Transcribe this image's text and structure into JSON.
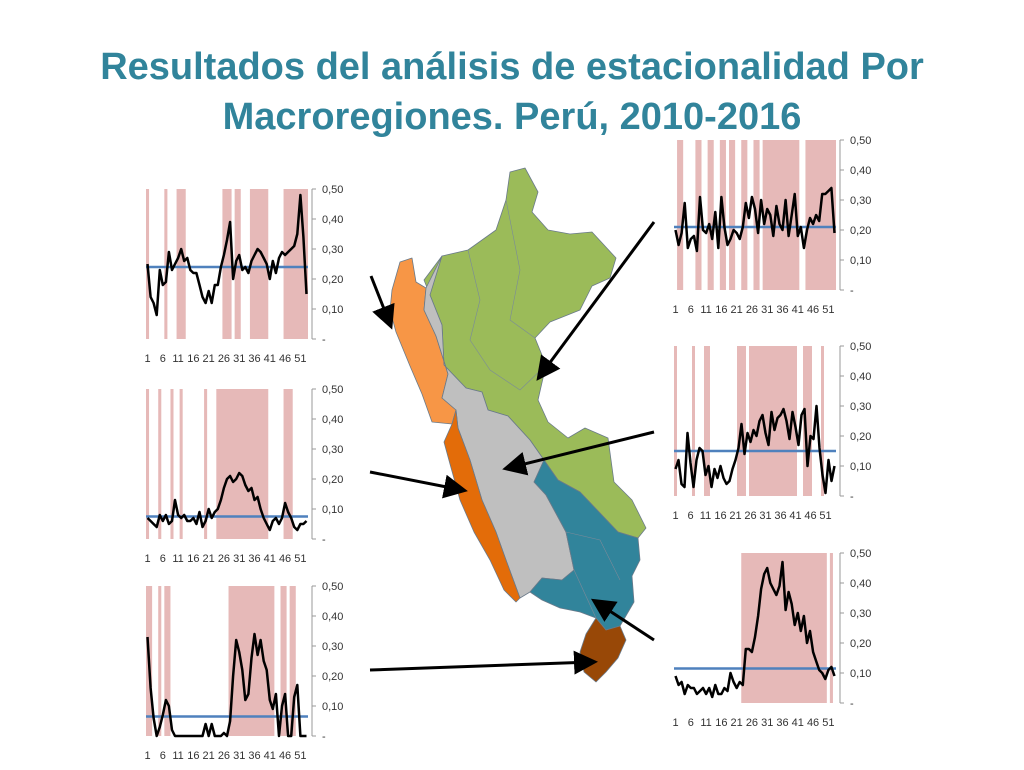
{
  "slide": {
    "title_line1": "Resultados del análisis de estacionalidad Por",
    "title_line2": "Macroregiones. Perú, 2010-2016"
  },
  "colors": {
    "title": "#31849B",
    "season_band": "#E6B9B8",
    "threshold_line": "#4F81BD",
    "series_line": "#000000",
    "map_green": "#9BBB59",
    "map_light_orange": "#F79646",
    "map_dark_orange": "#E36C09",
    "map_gray": "#BFBFBF",
    "map_teal": "#31849B",
    "map_brown": "#984807"
  },
  "chart_data": [
    {
      "id": "costa-norte",
      "type": "line",
      "ylim": [
        0,
        0.5
      ],
      "ytick_labels": [
        "-",
        "0,10",
        "0,20",
        "0,30",
        "0,40",
        "0,50"
      ],
      "xtick_labels": [
        "1",
        "6",
        "11",
        "16",
        "21",
        "26",
        "31",
        "36",
        "41",
        "46",
        "51"
      ],
      "threshold": 0.24,
      "bands": [
        [
          1,
          1
        ],
        [
          7,
          7
        ],
        [
          11,
          13
        ],
        [
          26,
          28
        ],
        [
          30,
          31
        ],
        [
          35,
          40
        ],
        [
          46,
          53
        ]
      ],
      "values": [
        0.25,
        0.14,
        0.12,
        0.08,
        0.23,
        0.18,
        0.19,
        0.29,
        0.23,
        0.25,
        0.27,
        0.3,
        0.26,
        0.27,
        0.23,
        0.22,
        0.22,
        0.18,
        0.14,
        0.12,
        0.16,
        0.12,
        0.18,
        0.18,
        0.24,
        0.28,
        0.33,
        0.39,
        0.2,
        0.26,
        0.28,
        0.23,
        0.24,
        0.22,
        0.26,
        0.28,
        0.3,
        0.29,
        0.27,
        0.25,
        0.2,
        0.26,
        0.22,
        0.27,
        0.29,
        0.28,
        0.29,
        0.3,
        0.31,
        0.35,
        0.48,
        0.34,
        0.15
      ]
    },
    {
      "id": "costa-centro",
      "type": "line",
      "ylim": [
        0,
        0.5
      ],
      "ytick_labels": [
        "-",
        "0,10",
        "0,20",
        "0,30",
        "0,40",
        "0,50"
      ],
      "xtick_labels": [
        "1",
        "6",
        "11",
        "16",
        "21",
        "26",
        "31",
        "36",
        "41",
        "46",
        "51"
      ],
      "threshold": 0.075,
      "bands": [
        [
          1,
          1
        ],
        [
          5,
          5
        ],
        [
          9,
          9
        ],
        [
          12,
          12
        ],
        [
          20,
          20
        ],
        [
          24,
          40
        ],
        [
          46,
          48
        ]
      ],
      "values": [
        0.07,
        0.06,
        0.05,
        0.04,
        0.08,
        0.06,
        0.08,
        0.05,
        0.06,
        0.13,
        0.08,
        0.07,
        0.08,
        0.06,
        0.06,
        0.07,
        0.05,
        0.09,
        0.04,
        0.06,
        0.1,
        0.07,
        0.09,
        0.1,
        0.13,
        0.17,
        0.2,
        0.21,
        0.19,
        0.2,
        0.22,
        0.21,
        0.18,
        0.16,
        0.17,
        0.13,
        0.14,
        0.1,
        0.07,
        0.05,
        0.03,
        0.06,
        0.07,
        0.05,
        0.07,
        0.12,
        0.09,
        0.07,
        0.04,
        0.03,
        0.05,
        0.05,
        0.06
      ]
    },
    {
      "id": "sur-costa",
      "type": "line",
      "ylim": [
        0,
        0.5
      ],
      "ytick_labels": [
        "-",
        "0,10",
        "0,20",
        "0,30",
        "0,40",
        "0,50"
      ],
      "xtick_labels": [
        "1",
        "6",
        "11",
        "16",
        "21",
        "26",
        "31",
        "36",
        "41",
        "46",
        "51"
      ],
      "threshold": 0.065,
      "bands": [
        [
          1,
          2
        ],
        [
          5,
          5
        ],
        [
          7,
          8
        ],
        [
          28,
          42
        ],
        [
          45,
          46
        ],
        [
          48,
          49
        ]
      ],
      "values": [
        0.33,
        0.16,
        0.06,
        0.0,
        0.03,
        0.07,
        0.12,
        0.1,
        0.02,
        0.0,
        0.0,
        0.0,
        0.0,
        0.0,
        0.0,
        0.0,
        0.0,
        0.0,
        0.0,
        0.04,
        0.0,
        0.04,
        0.0,
        0.0,
        0.0,
        0.01,
        0.0,
        0.05,
        0.2,
        0.32,
        0.28,
        0.22,
        0.12,
        0.14,
        0.26,
        0.34,
        0.27,
        0.32,
        0.25,
        0.22,
        0.12,
        0.09,
        0.14,
        0.0,
        0.1,
        0.14,
        0.0,
        0.0,
        0.13,
        0.17,
        0.0,
        0.0,
        0.0
      ]
    },
    {
      "id": "oriente",
      "type": "line",
      "ylim": [
        0,
        0.5
      ],
      "ytick_labels": [
        "-",
        "0,10",
        "0,20",
        "0,30",
        "0,40",
        "0,50"
      ],
      "xtick_labels": [
        "1",
        "6",
        "11",
        "16",
        "21",
        "26",
        "31",
        "36",
        "41",
        "46",
        "51"
      ],
      "threshold": 0.21,
      "bands": [
        [
          2,
          3
        ],
        [
          8,
          9
        ],
        [
          12,
          13
        ],
        [
          16,
          17
        ],
        [
          19,
          20
        ],
        [
          23,
          24
        ],
        [
          27,
          28
        ],
        [
          30,
          41
        ],
        [
          44,
          53
        ]
      ],
      "values": [
        0.2,
        0.15,
        0.19,
        0.29,
        0.14,
        0.17,
        0.18,
        0.13,
        0.31,
        0.2,
        0.19,
        0.22,
        0.17,
        0.26,
        0.14,
        0.31,
        0.21,
        0.15,
        0.17,
        0.2,
        0.19,
        0.17,
        0.21,
        0.29,
        0.24,
        0.31,
        0.27,
        0.19,
        0.3,
        0.22,
        0.27,
        0.25,
        0.18,
        0.28,
        0.22,
        0.2,
        0.3,
        0.18,
        0.25,
        0.32,
        0.18,
        0.21,
        0.14,
        0.2,
        0.24,
        0.22,
        0.25,
        0.23,
        0.32,
        0.32,
        0.33,
        0.34,
        0.19
      ]
    },
    {
      "id": "sierra-centro",
      "type": "line",
      "ylim": [
        0,
        0.5
      ],
      "ytick_labels": [
        "-",
        "0,10",
        "0,20",
        "0,30",
        "0,40",
        "0,50"
      ],
      "xtick_labels": [
        "1",
        "6",
        "11",
        "16",
        "21",
        "26",
        "31",
        "36",
        "41",
        "46",
        "51"
      ],
      "threshold": 0.15,
      "bands": [
        [
          1,
          1
        ],
        [
          7,
          7
        ],
        [
          11,
          12
        ],
        [
          22,
          24
        ],
        [
          26,
          41
        ],
        [
          44,
          46
        ],
        [
          50,
          50
        ]
      ],
      "values": [
        0.09,
        0.12,
        0.04,
        0.03,
        0.21,
        0.11,
        0.03,
        0.12,
        0.16,
        0.15,
        0.07,
        0.1,
        0.03,
        0.09,
        0.06,
        0.1,
        0.06,
        0.04,
        0.05,
        0.09,
        0.12,
        0.16,
        0.24,
        0.14,
        0.21,
        0.18,
        0.22,
        0.2,
        0.25,
        0.27,
        0.21,
        0.17,
        0.28,
        0.22,
        0.26,
        0.27,
        0.29,
        0.25,
        0.19,
        0.28,
        0.23,
        0.17,
        0.27,
        0.29,
        0.1,
        0.2,
        0.19,
        0.3,
        0.16,
        0.07,
        0.01,
        0.12,
        0.05,
        0.1
      ]
    },
    {
      "id": "sur-andino",
      "type": "line",
      "ylim": [
        0,
        0.5
      ],
      "ytick_labels": [
        "-",
        "0,10",
        "0,20",
        "0,30",
        "0,40",
        "0,50"
      ],
      "xtick_labels": [
        "1",
        "6",
        "11",
        "16",
        "21",
        "26",
        "31",
        "36",
        "41",
        "46",
        "51"
      ],
      "threshold": 0.115,
      "bands": [
        [
          23,
          50
        ],
        [
          52,
          52
        ]
      ],
      "values": [
        0.09,
        0.06,
        0.07,
        0.03,
        0.06,
        0.05,
        0.05,
        0.03,
        0.04,
        0.05,
        0.03,
        0.05,
        0.02,
        0.06,
        0.03,
        0.03,
        0.05,
        0.04,
        0.1,
        0.07,
        0.05,
        0.07,
        0.06,
        0.18,
        0.18,
        0.17,
        0.22,
        0.29,
        0.38,
        0.43,
        0.45,
        0.4,
        0.38,
        0.36,
        0.39,
        0.47,
        0.31,
        0.37,
        0.33,
        0.26,
        0.3,
        0.24,
        0.29,
        0.2,
        0.24,
        0.17,
        0.14,
        0.11,
        0.1,
        0.08,
        0.11,
        0.12,
        0.09
      ]
    }
  ]
}
